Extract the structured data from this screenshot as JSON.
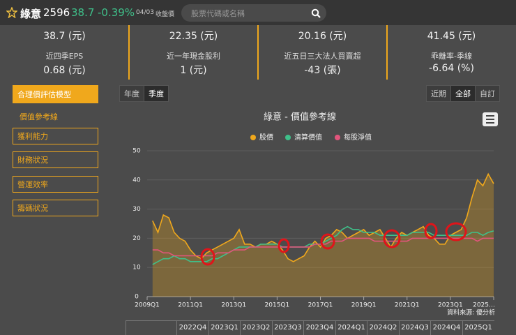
{
  "header": {
    "name": "綠意",
    "code": "2596",
    "price": "38.7",
    "change": "-0.39%",
    "date": "04/03",
    "date_note": "收盤價",
    "search_placeholder": "股票代碼或名稱"
  },
  "top_values": [
    "38.7 (元)",
    "22.35 (元)",
    "20.16 (元)",
    "41.45 (元)"
  ],
  "metrics": [
    {
      "label": "近四季EPS",
      "value": "0.68 (元)"
    },
    {
      "label": "近一年現金股利",
      "value": "1 (元)"
    },
    {
      "label": "近五日三大法人買賣超",
      "value": "-43 (張)"
    },
    {
      "label": "乖離率-季線",
      "value": "-6.64 (%)"
    }
  ],
  "sidebar": {
    "active": "合理價評估模型",
    "sub": "價值參考線",
    "items": [
      "獲利能力",
      "財務狀況",
      "營運效率",
      "籌碼狀況"
    ]
  },
  "period_tabs": [
    "年度",
    "季度"
  ],
  "range_tabs": [
    "近期",
    "全部",
    "自訂"
  ],
  "chart_data": {
    "type": "line",
    "title": "綠意 - 價值參考線",
    "source": "資料來源: 優分析",
    "categories": [
      "2009Q1",
      null,
      null,
      null,
      null,
      null,
      null,
      null,
      "2011Q1",
      null,
      null,
      null,
      null,
      null,
      null,
      null,
      "2013Q1",
      null,
      null,
      null,
      null,
      null,
      null,
      null,
      "2015Q1",
      null,
      null,
      null,
      null,
      null,
      null,
      null,
      "2017Q1",
      null,
      null,
      null,
      null,
      null,
      null,
      null,
      "2019Q1",
      null,
      null,
      null,
      null,
      null,
      null,
      null,
      "2021Q1",
      null,
      null,
      null,
      null,
      null,
      null,
      null,
      "2023Q1",
      null,
      null,
      null,
      null,
      null,
      null,
      null,
      "2025…"
    ],
    "series": [
      {
        "name": "股價",
        "color": "#f0a81c",
        "area": true,
        "values": [
          null,
          26,
          22,
          28,
          27,
          22,
          20,
          19,
          16,
          14,
          13,
          15,
          16,
          17,
          18,
          19,
          20,
          23,
          18,
          18,
          17,
          18,
          18,
          19,
          18,
          16,
          13,
          12,
          13,
          14,
          17,
          19,
          17,
          20,
          21,
          23,
          22,
          20,
          21,
          22,
          23,
          21,
          22,
          23,
          20,
          17,
          20,
          22,
          21,
          22,
          23,
          24,
          21,
          20,
          18,
          18,
          21,
          22,
          23,
          27,
          34,
          40,
          38,
          42,
          38.7
        ]
      },
      {
        "name": "清算價值",
        "color": "#3fc08a",
        "values": [
          null,
          11,
          12,
          13,
          13,
          14,
          13,
          13,
          12,
          12,
          12,
          12,
          13,
          13,
          14,
          15,
          16,
          17,
          17,
          17,
          17,
          18,
          18,
          18,
          18,
          17,
          17,
          17,
          17,
          17,
          18,
          18,
          18,
          19,
          20,
          21,
          23,
          24,
          23,
          23,
          22,
          22,
          22,
          21,
          21,
          21,
          21,
          21,
          21,
          22,
          22,
          22,
          22,
          21,
          21,
          21,
          21,
          21,
          21,
          21,
          22,
          22,
          21,
          22,
          22.5
        ]
      },
      {
        "name": "每股淨值",
        "color": "#e2557c",
        "values": [
          null,
          16,
          16,
          15,
          15,
          14,
          14,
          14,
          14,
          14,
          14,
          14,
          14,
          15,
          15,
          15,
          16,
          16,
          16,
          17,
          17,
          17,
          17,
          17,
          17,
          17,
          17,
          17,
          17,
          17,
          17,
          18,
          18,
          18,
          19,
          19,
          19,
          20,
          20,
          20,
          20,
          20,
          19,
          19,
          19,
          19,
          19,
          19,
          19,
          20,
          20,
          20,
          20,
          20,
          20,
          20,
          20,
          20,
          20,
          20,
          20,
          19,
          20,
          20,
          20
        ]
      }
    ],
    "ylim": [
      0,
      50
    ],
    "yticks": [
      0,
      10,
      20,
      30,
      40,
      50
    ],
    "grid": true,
    "legend": "top"
  },
  "table": {
    "header": [
      "2022Q4",
      "2023Q1",
      "2023Q2",
      "2023Q3",
      "2023Q4",
      "2024Q1",
      "2024Q2",
      "2024Q3",
      "2024Q4",
      "2025Q1"
    ]
  }
}
